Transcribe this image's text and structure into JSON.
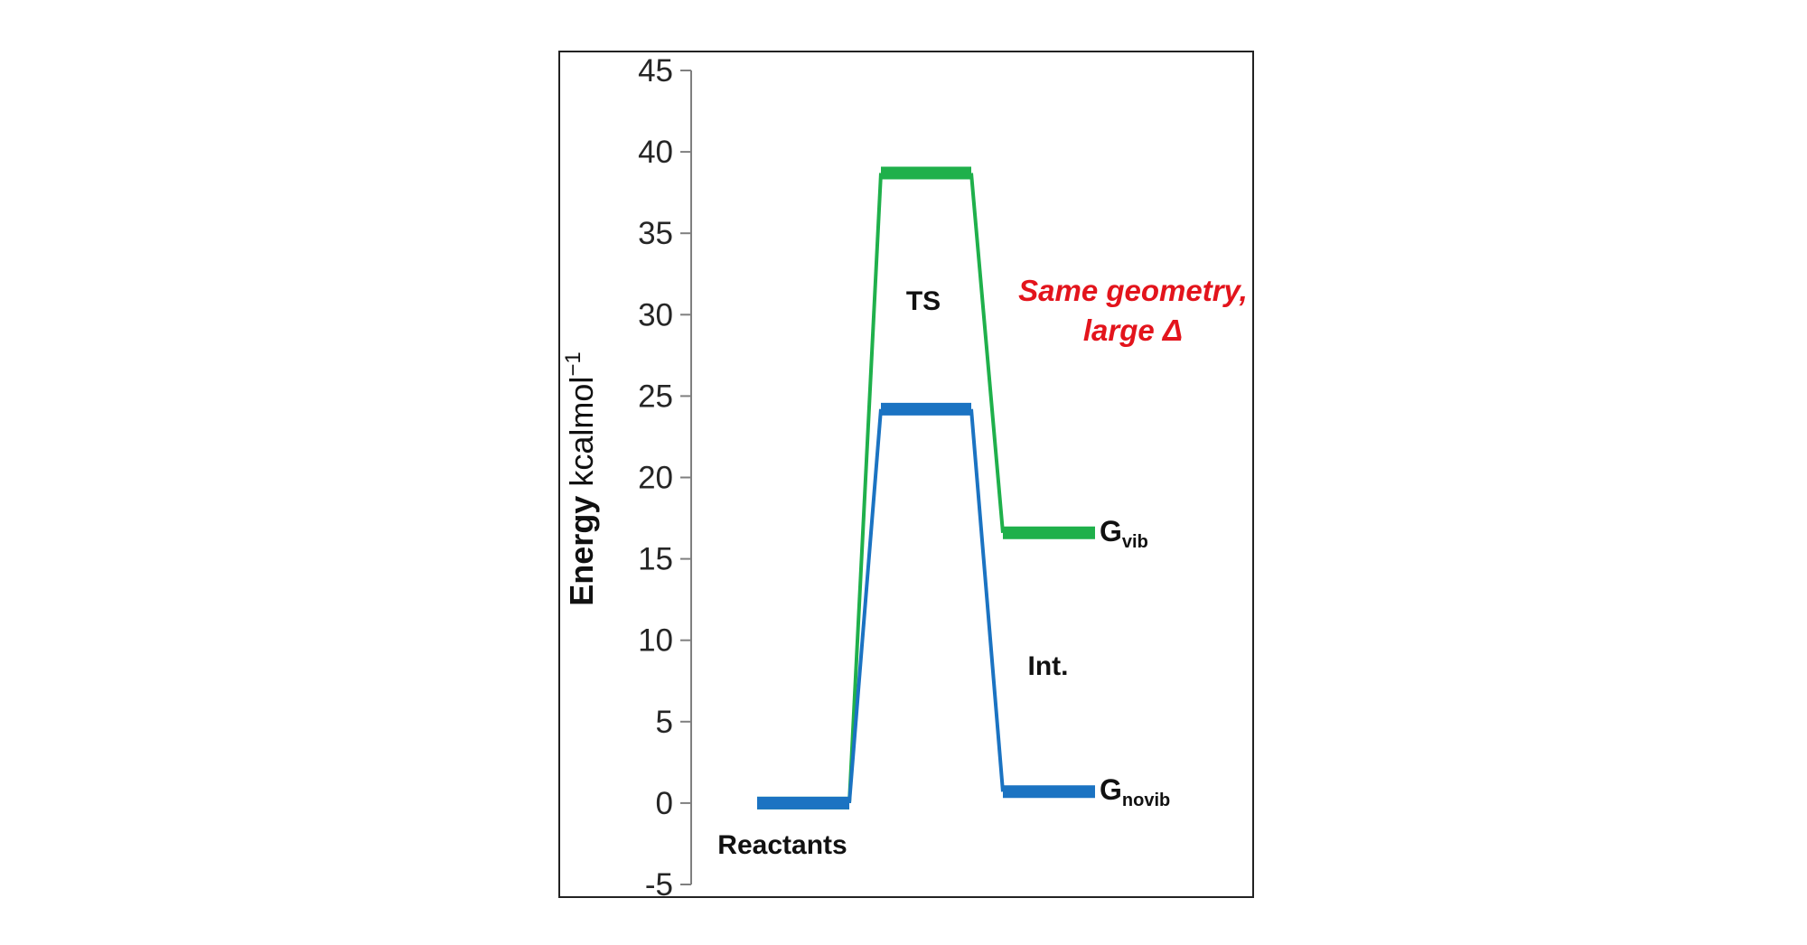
{
  "chart_data": {
    "type": "line",
    "ylabel": {
      "bold": "Energy",
      "rest": " kcalmol",
      "sup": "−1"
    },
    "ylim": [
      -5,
      45
    ],
    "yticks": [
      45,
      40,
      35,
      30,
      25,
      20,
      15,
      10,
      5,
      0,
      -5
    ],
    "grid": false,
    "categories": [
      "Reactants",
      "TS",
      "Int."
    ],
    "series": [
      {
        "name": "G",
        "sub": "vib",
        "color": "#1fb04b",
        "values": [
          0,
          38.7,
          16.6
        ]
      },
      {
        "name": "G",
        "sub": "novib",
        "color": "#1b73c2",
        "values": [
          0,
          24.2,
          0.7
        ]
      }
    ],
    "annotation": [
      "Same geometry,",
      "large Δ"
    ],
    "annotation_color": "#e3141c"
  }
}
